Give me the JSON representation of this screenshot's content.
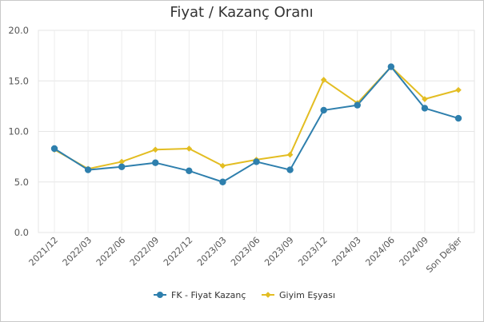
{
  "chart_data": {
    "type": "line",
    "title": "Fiyat / Kazanç Oranı",
    "xlabel": "",
    "ylabel": "",
    "categories": [
      "2021/12",
      "2022/03",
      "2022/06",
      "2022/09",
      "2022/12",
      "2023/03",
      "2023/06",
      "2023/09",
      "2023/12",
      "2024/03",
      "2024/06",
      "2024/09",
      "Son Değer"
    ],
    "ylim": [
      0,
      20
    ],
    "yticks": [
      "0.0",
      "5.0",
      "10.0",
      "15.0",
      "20.0"
    ],
    "grid": true,
    "legend_position": "bottom",
    "series": [
      {
        "name": "FK - Fiyat Kazanç",
        "color": "#2e7fad",
        "marker": "circle",
        "values": [
          8.3,
          6.2,
          6.5,
          6.9,
          6.1,
          5.0,
          7.0,
          6.2,
          12.1,
          12.6,
          16.4,
          12.3,
          11.3
        ]
      },
      {
        "name": "Giyim Eşyası",
        "color": "#e3bd22",
        "marker": "diamond",
        "values": [
          8.2,
          6.3,
          7.0,
          8.2,
          8.3,
          6.6,
          7.2,
          7.7,
          15.1,
          12.8,
          16.4,
          13.2,
          14.1
        ]
      }
    ]
  }
}
